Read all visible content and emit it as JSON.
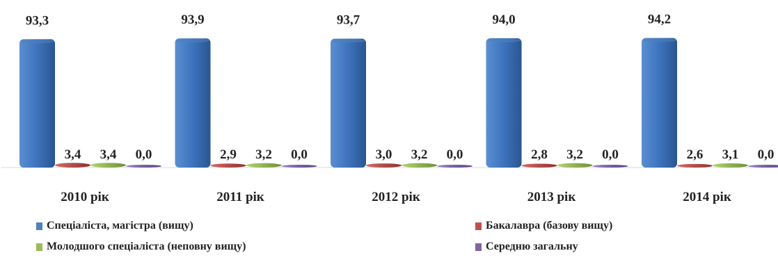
{
  "chart_data": {
    "type": "bar",
    "categories": [
      "2010 рік",
      "2011 рік",
      "2012 рік",
      "2013 рік",
      "2014 рік"
    ],
    "series": [
      {
        "name": "Спеціаліста, магістра (вищу)",
        "color": "#4F81BD",
        "values": [
          93.3,
          93.9,
          93.7,
          94.0,
          94.2
        ],
        "labels": [
          "93,3",
          "93,9",
          "93,7",
          "94,0",
          "94,2"
        ]
      },
      {
        "name": "Бакалавра (базову вищу)",
        "color": "#C0504D",
        "values": [
          3.4,
          2.9,
          3.0,
          2.8,
          2.6
        ],
        "labels": [
          "3,4",
          "2,9",
          "3,0",
          "2,8",
          "2,6"
        ]
      },
      {
        "name": "Молодшого спеціаліста (неповну вищу)",
        "color": "#9BBB59",
        "values": [
          3.4,
          3.2,
          3.2,
          3.2,
          3.1
        ],
        "labels": [
          "3,4",
          "3,2",
          "3,2",
          "3,2",
          "3,1"
        ]
      },
      {
        "name": "Середню загальну",
        "color": "#8064A2",
        "values": [
          0.0,
          0.0,
          0.0,
          0.0,
          0.0
        ],
        "labels": [
          "0,0",
          "0,0",
          "0,0",
          "0,0",
          "0,0"
        ]
      }
    ],
    "ylim": [
      0,
      100
    ],
    "grid": false,
    "legend_position": "bottom"
  }
}
